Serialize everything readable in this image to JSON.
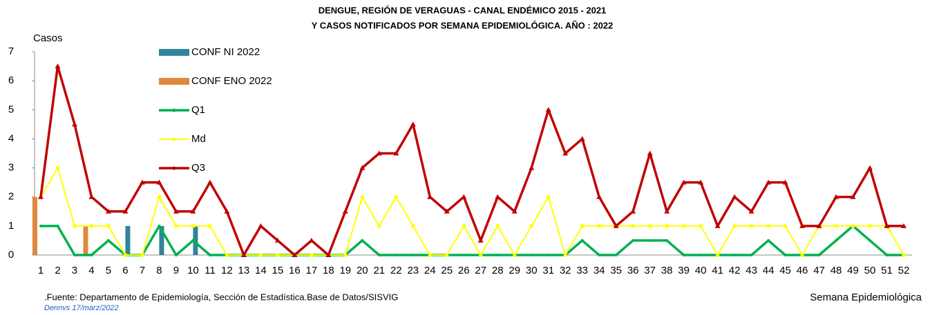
{
  "chart_data": {
    "type": "line",
    "title": "DENGUE, REGIÓN DE VERAGUAS - CANAL ENDÉMICO 2015 - 2021",
    "subtitle": "Y CASOS NOTIFICADOS POR SEMANA EPIDEMIOLÓGICA. AÑO : 2022",
    "y_label": "Casos",
    "x_label": "Semana Epidemiológica",
    "source": ".Fuente: Departamento de Epidemiología, Sección de Estadística.Base de Datos/SISVIG",
    "note": "Dennvs 17/marz/2022",
    "categories": [
      "1",
      "2",
      "3",
      "4",
      "5",
      "6",
      "7",
      "8",
      "9",
      "10",
      "11",
      "12",
      "13",
      "14",
      "15",
      "16",
      "17",
      "18",
      "19",
      "20",
      "21",
      "22",
      "23",
      "24",
      "25",
      "26",
      "27",
      "28",
      "29",
      "30",
      "31",
      "32",
      "33",
      "34",
      "35",
      "36",
      "37",
      "38",
      "39",
      "40",
      "41",
      "42",
      "43",
      "44",
      "45",
      "46",
      "47",
      "48",
      "49",
      "50",
      "51",
      "52"
    ],
    "ylim": [
      0,
      7
    ],
    "yticks": [
      0,
      1,
      2,
      3,
      4,
      5,
      6,
      7
    ],
    "series": [
      {
        "name": "CONF NI 2022",
        "kind": "bar",
        "color": "#31849b",
        "values": [
          0,
          0,
          0,
          0,
          0,
          1,
          0,
          1,
          0,
          1,
          0,
          0,
          0,
          0,
          0,
          0,
          0,
          0,
          0,
          0,
          0,
          0,
          0,
          0,
          0,
          0,
          0,
          0,
          0,
          0,
          0,
          0,
          0,
          0,
          0,
          0,
          0,
          0,
          0,
          0,
          0,
          0,
          0,
          0,
          0,
          0,
          0,
          0,
          0,
          0,
          0,
          0
        ]
      },
      {
        "name": "CONF ENO 2022",
        "kind": "bar",
        "color": "#e0883c",
        "values": [
          2,
          0,
          0,
          1,
          0,
          0,
          0,
          0,
          0,
          0,
          0,
          0,
          0,
          0,
          0,
          0,
          0,
          0,
          0,
          0,
          0,
          0,
          0,
          0,
          0,
          0,
          0,
          0,
          0,
          0,
          0,
          0,
          0,
          0,
          0,
          0,
          0,
          0,
          0,
          0,
          0,
          0,
          0,
          0,
          0,
          0,
          0,
          0,
          0,
          0,
          0,
          0
        ]
      },
      {
        "name": "Q1",
        "kind": "line",
        "marker": "circle",
        "color": "#00b050",
        "values": [
          1,
          1,
          0,
          0,
          0.5,
          0,
          0,
          1,
          0,
          0.5,
          0,
          0,
          0,
          0,
          0,
          0,
          0,
          0,
          0,
          0.5,
          0,
          0,
          0,
          0,
          0,
          0,
          0,
          0,
          0,
          0,
          0,
          0,
          0.5,
          0,
          0,
          0.5,
          0.5,
          0.5,
          0,
          0,
          0,
          0,
          0,
          0.5,
          0,
          0,
          0,
          0.5,
          1,
          0.5,
          0,
          0
        ]
      },
      {
        "name": "Md",
        "kind": "line",
        "marker": "square",
        "color": "#ffff00",
        "values": [
          2,
          3,
          1,
          1,
          1,
          0,
          0,
          2,
          1,
          1,
          1,
          0,
          0,
          0,
          0,
          0,
          0,
          0,
          0,
          2,
          1,
          2,
          1,
          0,
          0,
          1,
          0,
          1,
          0,
          1,
          2,
          0,
          1,
          1,
          1,
          1,
          1,
          1,
          1,
          1,
          0,
          1,
          1,
          1,
          1,
          0,
          1,
          1,
          1,
          1,
          1,
          0
        ]
      },
      {
        "name": "Q3",
        "kind": "line",
        "marker": "triangle",
        "color": "#c00000",
        "values": [
          2,
          6.5,
          4.5,
          2,
          1.5,
          1.5,
          2.5,
          2.5,
          1.5,
          1.5,
          2.5,
          1.5,
          0,
          1,
          0.5,
          0,
          0.5,
          0,
          1.5,
          3,
          3.5,
          3.5,
          4.5,
          2,
          1.5,
          2,
          0.5,
          2,
          1.5,
          3,
          5,
          3.5,
          4,
          2,
          1,
          1.5,
          3.5,
          1.5,
          2.5,
          2.5,
          1,
          2,
          1.5,
          2.5,
          2.5,
          1,
          1,
          2,
          2,
          3,
          1,
          1
        ]
      }
    ]
  }
}
